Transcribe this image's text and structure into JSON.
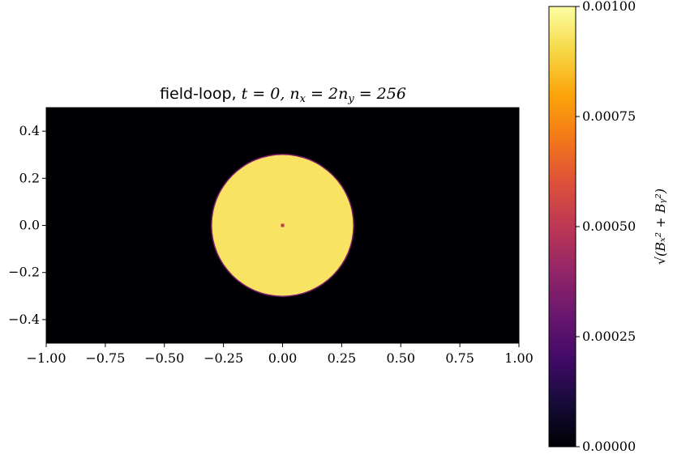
{
  "chart_data": {
    "type": "heatmap",
    "title": {
      "prefix": "field-loop, ",
      "math": "t = 0, n",
      "sub1": "x",
      "mid": " = 2n",
      "sub2": "y",
      "end": " = 256"
    },
    "colormap": "inferno",
    "xlim": [
      -1.0,
      1.0
    ],
    "ylim": [
      -0.5,
      0.5
    ],
    "xticks": [
      -1.0,
      -0.75,
      -0.5,
      -0.25,
      0.0,
      0.25,
      0.5,
      0.75,
      1.0
    ],
    "xtick_labels": [
      "−1.00",
      "−0.75",
      "−0.50",
      "−0.25",
      "0.00",
      "0.25",
      "0.50",
      "0.75",
      "1.00"
    ],
    "yticks": [
      0.4,
      0.2,
      0.0,
      -0.2,
      -0.4
    ],
    "ytick_labels": [
      "0.4",
      "0.2",
      "0.0",
      "−0.2",
      "−0.4"
    ],
    "field": {
      "shape": "disk",
      "center": [
        0.0,
        0.0
      ],
      "radius": 0.3,
      "inside_value": 0.00093,
      "outside_value": 0.0,
      "center_value": 0.0005
    },
    "colorbar": {
      "vmin": 0.0,
      "vmax": 0.001,
      "ticks": [
        0.001,
        0.00075,
        0.0005,
        0.00025,
        0.0
      ],
      "tick_labels": [
        "0.00100",
        "0.00075",
        "0.00050",
        "0.00025",
        "0.00000"
      ],
      "label": "√(Bₓ² + Bᵧ²)"
    },
    "grid": false
  }
}
